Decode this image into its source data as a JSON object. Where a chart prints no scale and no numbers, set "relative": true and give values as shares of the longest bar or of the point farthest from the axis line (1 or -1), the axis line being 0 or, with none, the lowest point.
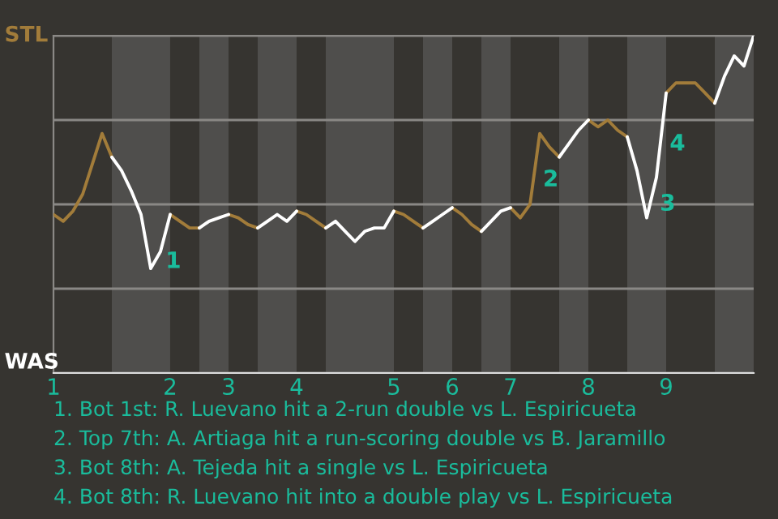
{
  "chart_data": {
    "type": "line",
    "relative": true,
    "grid": "y",
    "line_style": "solid",
    "categories": [
      "1",
      null,
      null,
      null,
      null,
      null,
      null,
      null,
      null,
      null,
      null,
      null,
      "2",
      null,
      null,
      null,
      null,
      null,
      "3",
      null,
      null,
      null,
      null,
      null,
      null,
      "4",
      null,
      null,
      null,
      null,
      null,
      null,
      null,
      null,
      null,
      "5",
      null,
      null,
      null,
      null,
      null,
      "6",
      null,
      null,
      null,
      null,
      null,
      "7",
      null,
      null,
      null,
      null,
      null,
      null,
      null,
      "8",
      null,
      null,
      null,
      null,
      null,
      null,
      null,
      "9",
      null,
      null,
      null,
      null,
      null,
      null,
      null,
      null,
      null
    ],
    "series": [
      {
        "color": "#a27c3a",
        "values": [
          0.47,
          0.45,
          0.48,
          0.53,
          0.62,
          0.71,
          0.64,
          null,
          null,
          null,
          null,
          null,
          0.47,
          0.45,
          0.43,
          0.43,
          null,
          null,
          0.47,
          0.46,
          0.44,
          0.43,
          null,
          null,
          null,
          0.48,
          0.47,
          0.45,
          0.43,
          null,
          null,
          null,
          null,
          null,
          null,
          0.48,
          0.47,
          0.45,
          0.43,
          null,
          null,
          0.49,
          0.47,
          0.44,
          0.42,
          null,
          null,
          0.49,
          0.46,
          0.5,
          0.71,
          0.67,
          0.64,
          null,
          null,
          0.75,
          0.73,
          0.75,
          0.72,
          0.7,
          null,
          null,
          null,
          0.83,
          0.86,
          0.86,
          0.86,
          0.83,
          0.8,
          null,
          null,
          null,
          null
        ]
      },
      {
        "color": "#ffffff",
        "values": [
          null,
          null,
          null,
          null,
          null,
          null,
          0.64,
          0.6,
          0.54,
          0.47,
          0.31,
          0.36,
          0.47,
          null,
          null,
          0.43,
          0.45,
          0.46,
          0.47,
          null,
          null,
          0.43,
          0.45,
          0.47,
          0.45,
          0.48,
          null,
          null,
          0.43,
          0.45,
          0.42,
          0.39,
          0.42,
          0.43,
          0.43,
          0.48,
          null,
          null,
          0.43,
          0.45,
          0.47,
          0.49,
          null,
          null,
          0.42,
          0.45,
          0.48,
          0.49,
          null,
          null,
          null,
          null,
          0.64,
          0.68,
          0.72,
          0.75,
          null,
          null,
          null,
          0.7,
          0.6,
          0.46,
          0.58,
          0.83,
          null,
          null,
          null,
          null,
          0.8,
          0.88,
          0.94,
          0.91,
          1
        ]
      }
    ],
    "annotations": [
      "STL",
      "WAS",
      "1",
      "2",
      "3",
      "4",
      "1. Bot 1st: R. Luevano hit a 2-run double vs L. Espiricueta",
      "2. Top 7th: A. Artiaga hit a run-scoring double vs B. Jaramillo",
      "3. Bot 8th: A. Tejeda hit a single vs L. Espiricueta",
      "4. Bot 8th: R. Luevano hit into a double play vs L. Espiricueta"
    ]
  }
}
